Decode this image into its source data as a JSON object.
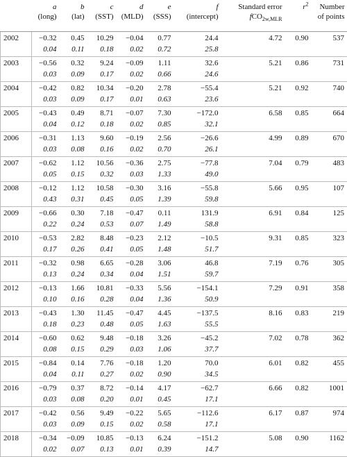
{
  "table": {
    "header": {
      "cols": [
        {
          "symbol": "a",
          "note": "(long)"
        },
        {
          "symbol": "b",
          "note": "(lat)"
        },
        {
          "symbol": "c",
          "note": "(SST)"
        },
        {
          "symbol": "d",
          "note": "(MLD)"
        },
        {
          "symbol": "e",
          "note": "(SSS)"
        },
        {
          "symbol": "f",
          "note": "(intercept)"
        }
      ],
      "se": {
        "text": "Standard error",
        "symbol": "f",
        "base": "CO",
        "sub": "2w,MLR"
      },
      "r2": {
        "symbol": "r",
        "sup": "2"
      },
      "n": {
        "text": "Number of points"
      }
    },
    "rows": [
      {
        "year": "2002",
        "values": [
          "−0.32",
          "0.45",
          "10.29",
          "−0.04",
          "0.77",
          "24.4"
        ],
        "errors": [
          "0.04",
          "0.11",
          "0.18",
          "0.02",
          "0.72",
          "25.8"
        ],
        "se": "4.72",
        "r2": "0.90",
        "n": "537"
      },
      {
        "year": "2003",
        "values": [
          "−0.56",
          "0.32",
          "9.24",
          "−0.09",
          "1.11",
          "32.6"
        ],
        "errors": [
          "0.03",
          "0.09",
          "0.17",
          "0.02",
          "0.66",
          "24.6"
        ],
        "se": "5.21",
        "r2": "0.86",
        "n": "731"
      },
      {
        "year": "2004",
        "values": [
          "−0.42",
          "0.82",
          "10.34",
          "−0.20",
          "2.78",
          "−55.4"
        ],
        "errors": [
          "0.03",
          "0.09",
          "0.17",
          "0.01",
          "0.63",
          "23.6"
        ],
        "se": "5.21",
        "r2": "0.92",
        "n": "740"
      },
      {
        "year": "2005",
        "values": [
          "−0.43",
          "0.49",
          "8.71",
          "−0.07",
          "7.30",
          "−172.0"
        ],
        "errors": [
          "0.04",
          "0.12",
          "0.18",
          "0.02",
          "0.85",
          "32.1"
        ],
        "se": "6.58",
        "r2": "0.85",
        "n": "664"
      },
      {
        "year": "2006",
        "values": [
          "−0.31",
          "1.13",
          "9.60",
          "−0.19",
          "2.56",
          "−26.6"
        ],
        "errors": [
          "0.03",
          "0.08",
          "0.16",
          "0.02",
          "0.70",
          "26.1"
        ],
        "se": "4.99",
        "r2": "0.89",
        "n": "670"
      },
      {
        "year": "2007",
        "values": [
          "−0.62",
          "1.12",
          "10.56",
          "−0.36",
          "2.75",
          "−77.8"
        ],
        "errors": [
          "0.05",
          "0.15",
          "0.32",
          "0.03",
          "1.33",
          "49.0"
        ],
        "se": "7.04",
        "r2": "0.79",
        "n": "483"
      },
      {
        "year": "2008",
        "values": [
          "−0.12",
          "1.12",
          "10.58",
          "−0.30",
          "3.16",
          "−55.8"
        ],
        "errors": [
          "0.43",
          "0.31",
          "0.45",
          "0.05",
          "1.39",
          "59.8"
        ],
        "se": "5.66",
        "r2": "0.95",
        "n": "107"
      },
      {
        "year": "2009",
        "values": [
          "−0.66",
          "0.30",
          "7.18",
          "−0.47",
          "0.11",
          "131.9"
        ],
        "errors": [
          "0.22",
          "0.24",
          "0.53",
          "0.07",
          "1.49",
          "58.8"
        ],
        "se": "6.91",
        "r2": "0.84",
        "n": "125"
      },
      {
        "year": "2010",
        "values": [
          "−0.53",
          "2.82",
          "8.48",
          "−0.23",
          "2.12",
          "−10.5"
        ],
        "errors": [
          "0.17",
          "0.26",
          "0.41",
          "0.05",
          "1.48",
          "51.7"
        ],
        "se": "9.31",
        "r2": "0.85",
        "n": "323"
      },
      {
        "year": "2011",
        "values": [
          "−0.32",
          "0.98",
          "6.65",
          "−0.28",
          "3.06",
          "46.8"
        ],
        "errors": [
          "0.13",
          "0.24",
          "0.34",
          "0.04",
          "1.51",
          "59.7"
        ],
        "se": "7.19",
        "r2": "0.76",
        "n": "305"
      },
      {
        "year": "2012",
        "values": [
          "−0.13",
          "1.66",
          "10.81",
          "−0.33",
          "5.56",
          "−154.1"
        ],
        "errors": [
          "0.10",
          "0.16",
          "0.28",
          "0.04",
          "1.36",
          "50.9"
        ],
        "se": "7.29",
        "r2": "0.91",
        "n": "358"
      },
      {
        "year": "2013",
        "values": [
          "−0.43",
          "1.30",
          "11.45",
          "−0.47",
          "4.45",
          "−137.5"
        ],
        "errors": [
          "0.18",
          "0.23",
          "0.48",
          "0.05",
          "1.63",
          "55.5"
        ],
        "se": "8.16",
        "r2": "0.83",
        "n": "219"
      },
      {
        "year": "2014",
        "values": [
          "−0.60",
          "0.62",
          "9.48",
          "−0.18",
          "3.26",
          "−45.2"
        ],
        "errors": [
          "0.08",
          "0.15",
          "0.29",
          "0.03",
          "1.06",
          "37.7"
        ],
        "se": "7.02",
        "r2": "0.78",
        "n": "362"
      },
      {
        "year": "2015",
        "values": [
          "−0.84",
          "0.14",
          "7.76",
          "−0.18",
          "1.20",
          "70.0"
        ],
        "errors": [
          "0.04",
          "0.11",
          "0.27",
          "0.02",
          "0.90",
          "34.5"
        ],
        "se": "6.01",
        "r2": "0.82",
        "n": "455"
      },
      {
        "year": "2016",
        "values": [
          "−0.79",
          "0.37",
          "8.72",
          "−0.14",
          "4.17",
          "−62.7"
        ],
        "errors": [
          "0.03",
          "0.08",
          "0.20",
          "0.01",
          "0.45",
          "17.1"
        ],
        "se": "6.66",
        "r2": "0.82",
        "n": "1001"
      },
      {
        "year": "2017",
        "values": [
          "−0.42",
          "0.56",
          "9.49",
          "−0.22",
          "5.65",
          "−112.6"
        ],
        "errors": [
          "0.03",
          "0.09",
          "0.15",
          "0.02",
          "0.58",
          "17.1"
        ],
        "se": "6.17",
        "r2": "0.87",
        "n": "974"
      },
      {
        "year": "2018",
        "values": [
          "−0.34",
          "−0.09",
          "10.85",
          "−0.13",
          "6.24",
          "−151.2"
        ],
        "errors": [
          "0.02",
          "0.07",
          "0.13",
          "0.01",
          "0.39",
          "14.7"
        ],
        "se": "5.08",
        "r2": "0.90",
        "n": "1162"
      }
    ]
  }
}
